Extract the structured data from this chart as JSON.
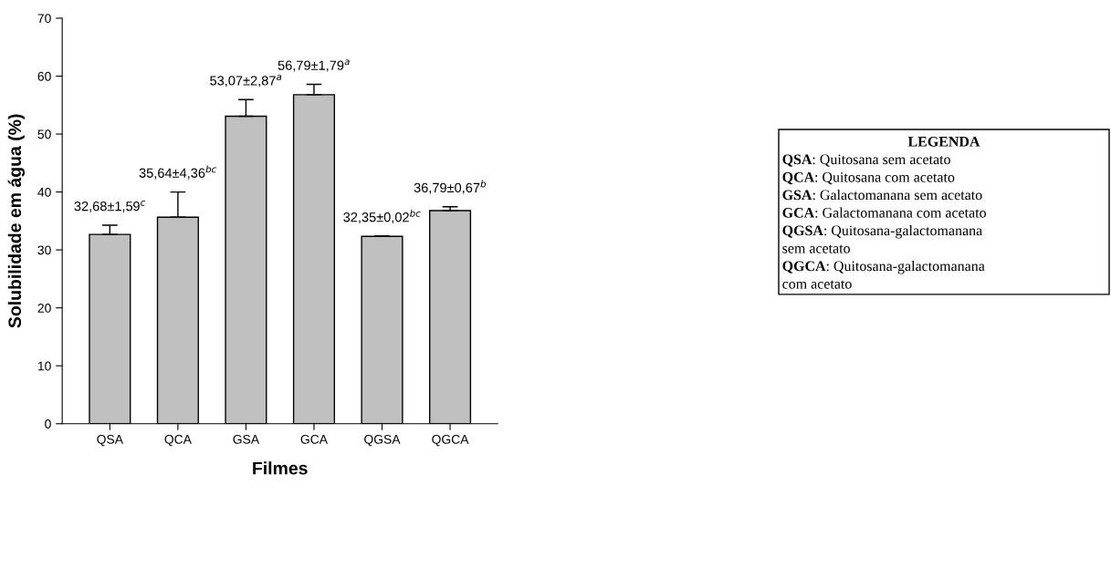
{
  "chart_data": {
    "type": "bar",
    "xlabel": "Filmes",
    "ylabel": "Solubilidade em água (%)",
    "categories": [
      "QSA",
      "QCA",
      "GSA",
      "GCA",
      "QGSA",
      "QGCA"
    ],
    "values": [
      32.68,
      35.64,
      53.07,
      56.79,
      32.35,
      36.79
    ],
    "errors": [
      1.59,
      4.36,
      2.87,
      1.79,
      0.02,
      0.67
    ],
    "value_labels": [
      "32,68±1,59$^{c}$",
      "35,64±4,36$^{bc}$",
      "53,07±2,87$^{a}$",
      "56,79±1,79$^{a}$",
      "32,35±0,02$^{bc}$",
      "36,79±0,67$^{b}$"
    ],
    "color": "#c0c0c0",
    "ylim": [
      0,
      70
    ],
    "yticks": [
      0,
      10,
      20,
      30,
      40,
      50,
      60,
      70
    ],
    "grid": false,
    "legend": false,
    "annotations": [
      "LEGENDA",
      "QSA: Quitosana sem acetato",
      "QCA: Quitosana com acetato",
      "GSA: Galactomanana sem acetato",
      "GCA: Galactomanana com acetato",
      "QGSA: Quitosana-galactomanana\nsem acetato",
      "QGCA: Quitosana-galactomanana\ncom acetato"
    ]
  }
}
